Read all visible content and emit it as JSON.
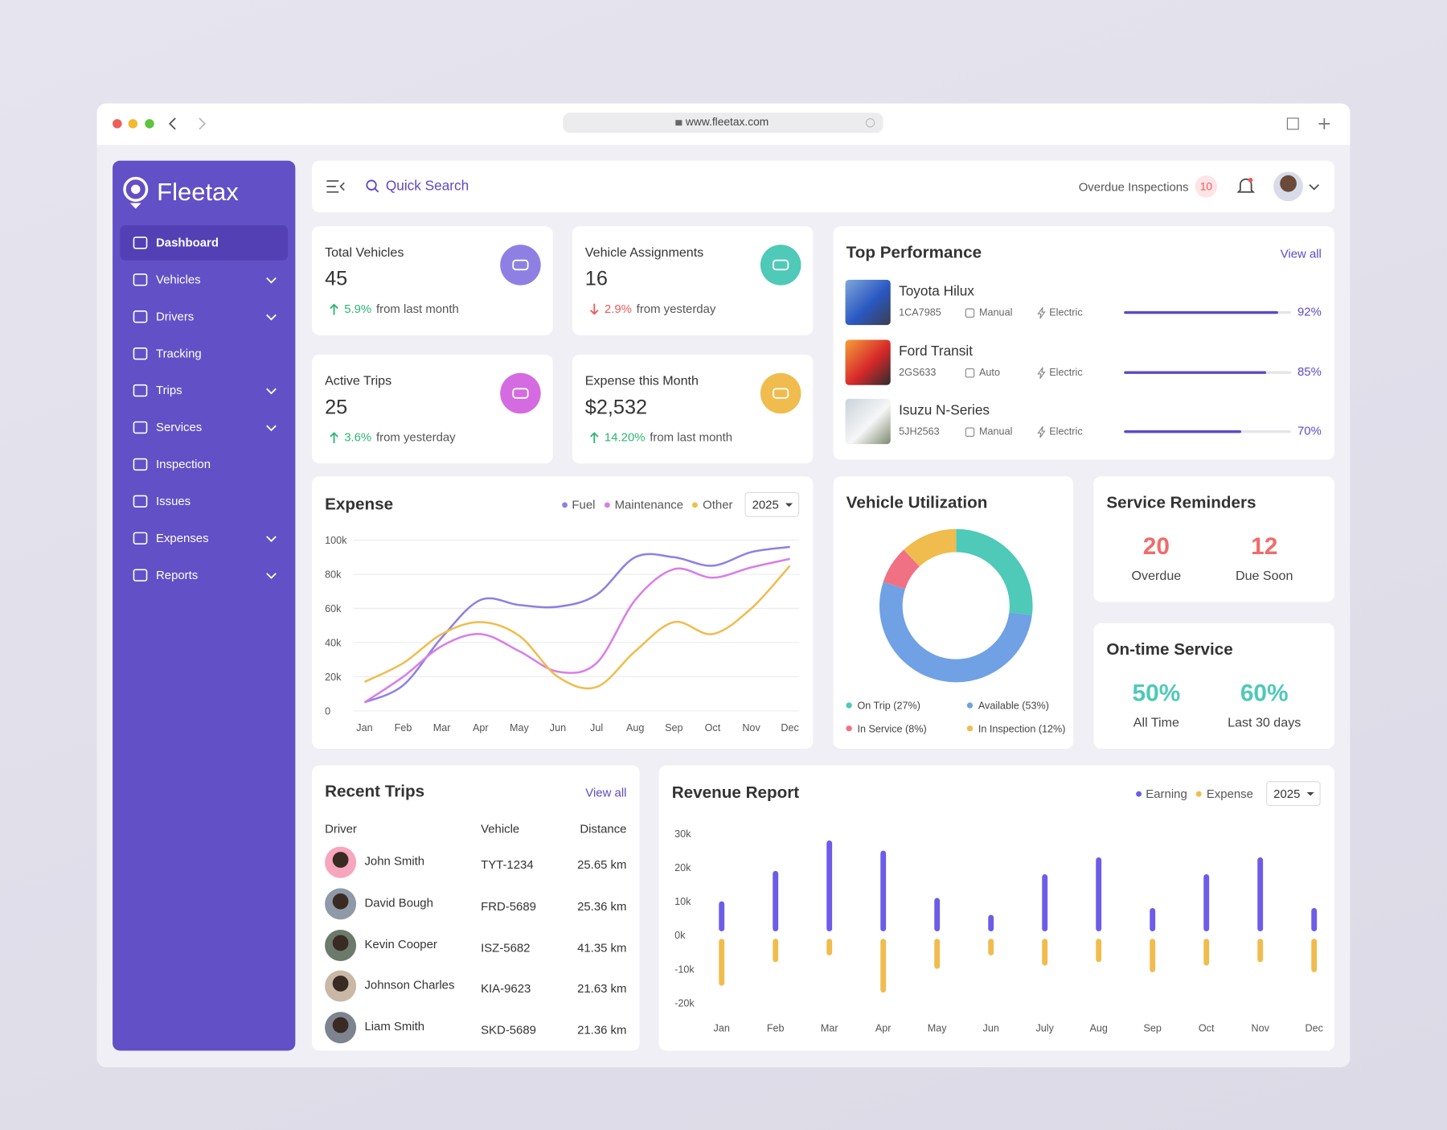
{
  "browser": {
    "url": "www.fleetax.com"
  },
  "sidebar": {
    "brand": "Fleetax",
    "menu": [
      {
        "label": "Dashboard",
        "active": true,
        "expandable": false
      },
      {
        "label": "Vehicles",
        "active": false,
        "expandable": true
      },
      {
        "label": "Drivers",
        "active": false,
        "expandable": true
      },
      {
        "label": "Tracking",
        "active": false,
        "expandable": false
      },
      {
        "label": "Trips",
        "active": false,
        "expandable": true
      },
      {
        "label": "Services",
        "active": false,
        "expandable": true
      },
      {
        "label": "Inspection",
        "active": false,
        "expandable": false
      },
      {
        "label": "Issues",
        "active": false,
        "expandable": false
      },
      {
        "label": "Expenses",
        "active": false,
        "expandable": true
      },
      {
        "label": "Reports",
        "active": false,
        "expandable": true
      }
    ]
  },
  "header": {
    "search": "Quick Search",
    "overdue_label": "Overdue Inspections",
    "overdue_count": 10
  },
  "stats": [
    {
      "title": "Total Vehicles",
      "value": "45",
      "change": "5.9%",
      "direction": "up",
      "note": "from last month",
      "icon_color": "#8e80e2"
    },
    {
      "title": "Vehicle Assignments",
      "value": "16",
      "change": "2.9%",
      "direction": "down",
      "note": "from yesterday",
      "icon_color": "#4fc9b8"
    },
    {
      "title": "Active Trips",
      "value": "25",
      "change": "3.6%",
      "direction": "up",
      "note": "from yesterday",
      "icon_color": "#d56be0"
    },
    {
      "title": "Expense this Month",
      "value": "$2,532",
      "change": "14.20%",
      "direction": "up",
      "note": "from last month",
      "icon_color": "#f0bc4e"
    }
  ],
  "top_performance": {
    "title": "Top Performance",
    "view_all": "View all",
    "vehicles": [
      {
        "name": "Toyota Hilux",
        "plate": "1CA7985",
        "transmission": "Manual",
        "fuel": "Electric",
        "score": 92,
        "score_label": "92%"
      },
      {
        "name": "Ford Transit",
        "plate": "2GS633",
        "transmission": "Auto",
        "fuel": "Electric",
        "score": 85,
        "score_label": "85%"
      },
      {
        "name": "Isuzu N-Series",
        "plate": "5JH2563",
        "transmission": "Manual",
        "fuel": "Electric",
        "score": 70,
        "score_label": "70%"
      }
    ]
  },
  "service_reminders": {
    "title": "Service Reminders",
    "color": "#f06b6b",
    "items": [
      {
        "value": 20,
        "label": "Overdue"
      },
      {
        "value": 12,
        "label": "Due Soon"
      }
    ]
  },
  "on_time_service": {
    "title": "On-time Service",
    "color": "#4fc9b8",
    "items": [
      {
        "value": "50%",
        "label": "All Time"
      },
      {
        "value": "60%",
        "label": "Last 30 days"
      }
    ]
  },
  "recent_trips": {
    "title": "Recent Trips",
    "view_all": "View all",
    "columns": [
      "Driver",
      "Vehicle",
      "Distance"
    ],
    "rows": [
      [
        "John Smith",
        "TYT-1234",
        "25.65 km"
      ],
      [
        "David Bough",
        "FRD-5689",
        "25.36 km"
      ],
      [
        "Kevin Cooper",
        "ISZ-5682",
        "41.35 km"
      ],
      [
        "Johnson Charles",
        "KIA-9623",
        "21.63 km"
      ],
      [
        "Liam Smith",
        "SKD-5689",
        "21.36 km"
      ]
    ]
  },
  "chart_data": [
    {
      "type": "line",
      "title": "Expense",
      "selector": "2025",
      "grid": true,
      "categories": [
        "Jan",
        "Feb",
        "Mar",
        "Apr",
        "May",
        "Jun",
        "Jul",
        "Aug",
        "Sep",
        "Oct",
        "Nov",
        "Dec"
      ],
      "series": [
        {
          "name": "Fuel",
          "color": "#8e80e2",
          "values": [
            5000,
            15000,
            43000,
            65000,
            62000,
            61000,
            68000,
            90000,
            90000,
            85000,
            93000,
            96000
          ]
        },
        {
          "name": "Maintenance",
          "color": "#d97ee6",
          "values": [
            5000,
            20000,
            38000,
            45000,
            35000,
            23000,
            28000,
            65000,
            83000,
            78000,
            84000,
            89000
          ]
        },
        {
          "name": "Other",
          "color": "#f0bc4e",
          "values": [
            17000,
            28000,
            45000,
            52000,
            44000,
            20000,
            14000,
            35000,
            52000,
            45000,
            60000,
            85000
          ]
        }
      ],
      "ylim": [
        0,
        100000
      ],
      "yticks": [
        0,
        {
          "value": 20000,
          "label": "20k"
        },
        {
          "value": 40000,
          "label": "40k"
        },
        {
          "value": 60000,
          "label": "60k"
        },
        {
          "value": 80000,
          "label": "80k"
        },
        {
          "value": 100000,
          "label": "100k"
        }
      ]
    },
    {
      "type": "pie",
      "donut": true,
      "title": "Vehicle Utilization",
      "categories": [
        "On Trip (27%)",
        "Available (53%)",
        "In Service (8%)",
        "In Inspection (12%)"
      ],
      "values": [
        27,
        53,
        8,
        12
      ],
      "colors": [
        "#4fc9b8",
        "#6fa1e4",
        "#f07183",
        "#f0bc4e"
      ]
    },
    {
      "type": "bar",
      "title": "Revenue Report",
      "selector": "2025",
      "grid": false,
      "categories": [
        "Jan",
        "Feb",
        "Mar",
        "Apr",
        "May",
        "Jun",
        "July",
        "Aug",
        "Sep",
        "Oct",
        "Nov",
        "Dec"
      ],
      "series": [
        {
          "name": "Earning",
          "color": "#6c5ce7",
          "values": [
            10000,
            19000,
            28000,
            25000,
            11000,
            6000,
            18000,
            23000,
            8000,
            18000,
            23000,
            8000
          ]
        },
        {
          "name": "Expense",
          "color": "#f0bc4e",
          "values": [
            -15000,
            -8000,
            -6000,
            -17000,
            -10000,
            -6000,
            -9000,
            -8000,
            -11000,
            -9000,
            -8000,
            -11000
          ]
        }
      ],
      "ylim": [
        -20000,
        30000
      ],
      "yticks": [
        {
          "value": 30000,
          "label": "30k"
        },
        {
          "value": 20000,
          "label": "20k"
        },
        {
          "value": 10000,
          "label": "10k"
        },
        {
          "value": 0,
          "label": "0k"
        },
        {
          "value": -10000,
          "label": "-10k"
        },
        {
          "value": -20000,
          "label": "-20k"
        }
      ]
    }
  ]
}
